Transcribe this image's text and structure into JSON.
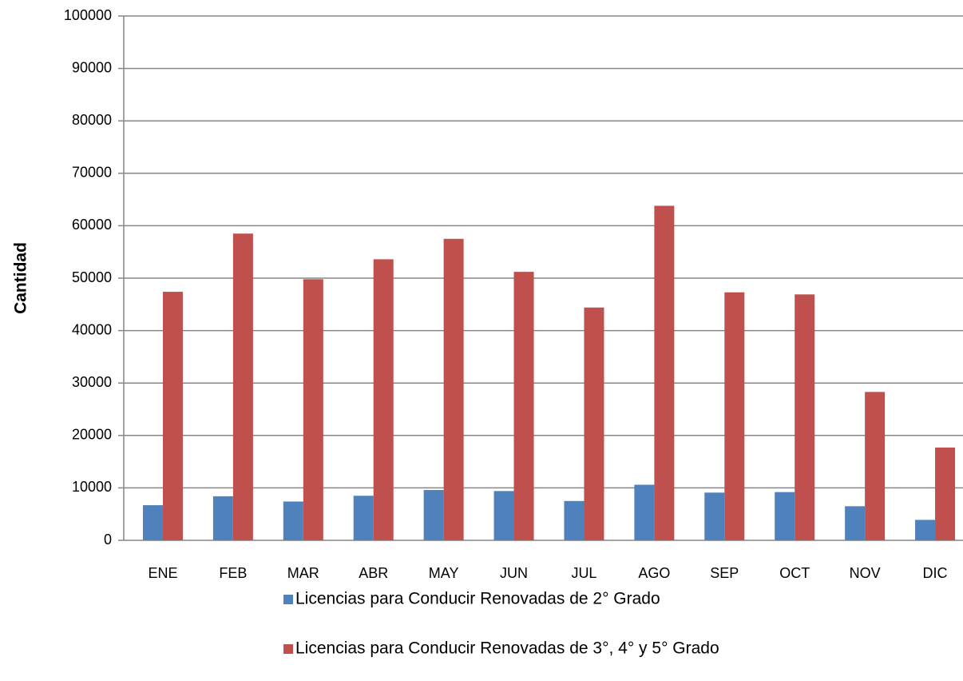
{
  "chart_data": {
    "type": "bar",
    "y_label": "Cantidad",
    "categories": [
      "ENE",
      "FEB",
      "MAR",
      "ABR",
      "MAY",
      "JUN",
      "JUL",
      "AGO",
      "SEP",
      "OCT",
      "NOV",
      "DIC"
    ],
    "series": [
      {
        "name": "Licencias para Conducir Renovadas de 2° Grado",
        "color": "#4f81bd",
        "values": [
          6700,
          8400,
          7400,
          8500,
          9600,
          9400,
          7500,
          10600,
          9100,
          9200,
          6500,
          3900
        ]
      },
      {
        "name": "Licencias para Conducir Renovadas de 3°, 4° y 5° Grado",
        "color": "#c0504d",
        "values": [
          47400,
          58500,
          49800,
          53600,
          57500,
          51200,
          44400,
          63800,
          47300,
          46900,
          28300,
          17700
        ]
      }
    ],
    "ylim": [
      0,
      100000
    ],
    "yticks": [
      0,
      10000,
      20000,
      30000,
      40000,
      50000,
      60000,
      70000,
      80000,
      90000,
      100000
    ],
    "grid": true,
    "legend": "bottom"
  }
}
